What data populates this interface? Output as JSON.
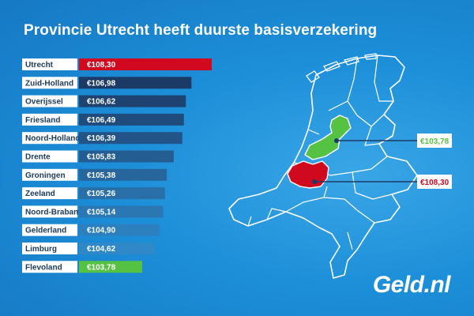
{
  "header": {
    "title": "Provincie Utrecht heeft duurste basisverzekering"
  },
  "brand": {
    "logo": "Geld.nl"
  },
  "colors": {
    "highest": "#d0091f",
    "lowest": "#56c243",
    "bar_dark": "#1c3a66",
    "bar_light": "#2f89c9",
    "label_bg": "#ffffff",
    "map_outline": "#ffffff"
  },
  "callouts": [
    {
      "province": "Flevoland",
      "label": "€103,78",
      "color": "#56c243"
    },
    {
      "province": "Utrecht",
      "label": "€108,30",
      "color": "#d0091f"
    }
  ],
  "chart_data": {
    "type": "bar",
    "orientation": "horizontal",
    "categories": [
      "Utrecht",
      "Zuid-Holland",
      "Overijssel",
      "Friesland",
      "Noord-Holland",
      "Drente",
      "Groningen",
      "Zeeland",
      "Noord-Brabant",
      "Gelderland",
      "Limburg",
      "Flevoland"
    ],
    "values": [
      108.3,
      106.98,
      106.62,
      106.49,
      106.39,
      105.83,
      105.38,
      105.26,
      105.14,
      104.9,
      104.62,
      103.78
    ],
    "value_labels": [
      "€108,30",
      "€106,98",
      "€106,62",
      "€106,49",
      "€106,39",
      "€105,83",
      "€105,38",
      "€105,26",
      "€105,14",
      "€104,90",
      "€104,62",
      "€103,78"
    ],
    "title": "Provincie Utrecht heeft duurste basisverzekering",
    "xlabel": "",
    "ylabel": "",
    "grid": false,
    "legend": "none"
  }
}
